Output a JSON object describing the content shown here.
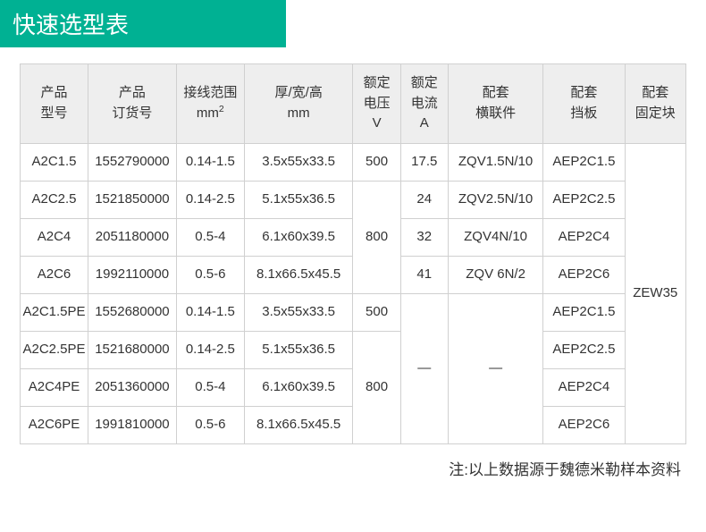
{
  "title": "快速选型表",
  "columns": {
    "c0": "产品\n型号",
    "c1": "产品\n订货号",
    "c2_a": "接线范围",
    "c2_b": "mm²",
    "c3_a": "厚/宽/高",
    "c3_b": "mm",
    "c4_a": "额定",
    "c4_b": "电压",
    "c4_c": "V",
    "c5_a": "额定",
    "c5_b": "电流",
    "c5_c": "A",
    "c6": "配套\n横联件",
    "c7": "配套\n挡板",
    "c8": "配套\n固定块"
  },
  "col_widths_pct": [
    10,
    13,
    10,
    16,
    7,
    7,
    14,
    12,
    9
  ],
  "rows": [
    {
      "model": "A2C1.5",
      "order": "1552790000",
      "wire": "0.14-1.5",
      "dim": "3.5x55x33.5",
      "volt": "500",
      "amp": "17.5",
      "cross": "ZQV1.5N/10",
      "baffle": "AEP2C1.5"
    },
    {
      "model": "A2C2.5",
      "order": "1521850000",
      "wire": "0.14-2.5",
      "dim": "5.1x55x36.5",
      "volt": null,
      "amp": "24",
      "cross": "ZQV2.5N/10",
      "baffle": "AEP2C2.5"
    },
    {
      "model": "A2C4",
      "order": "2051180000",
      "wire": "0.5-4",
      "dim": "6.1x60x39.5",
      "volt": null,
      "amp": "32",
      "cross": "ZQV4N/10",
      "baffle": "AEP2C4"
    },
    {
      "model": "A2C6",
      "order": "1992110000",
      "wire": "0.5-6",
      "dim": "8.1x66.5x45.5",
      "volt": null,
      "amp": "41",
      "cross": "ZQV 6N/2",
      "baffle": "AEP2C6"
    },
    {
      "model": "A2C1.5PE",
      "order": "1552680000",
      "wire": "0.14-1.5",
      "dim": "3.5x55x33.5",
      "volt": "500",
      "amp": null,
      "cross": null,
      "baffle": "AEP2C1.5"
    },
    {
      "model": "A2C2.5PE",
      "order": "1521680000",
      "wire": "0.14-2.5",
      "dim": "5.1x55x36.5",
      "volt": null,
      "amp": null,
      "cross": null,
      "baffle": "AEP2C2.5"
    },
    {
      "model": "A2C4PE",
      "order": "2051360000",
      "wire": "0.5-4",
      "dim": "6.1x60x39.5",
      "volt": null,
      "amp": null,
      "cross": null,
      "baffle": "AEP2C4"
    },
    {
      "model": "A2C6PE",
      "order": "1991810000",
      "wire": "0.5-6",
      "dim": "8.1x66.5x45.5",
      "volt": null,
      "amp": null,
      "cross": null,
      "baffle": "AEP2C6"
    }
  ],
  "volt_merge_b": "800",
  "volt_merge_d": "800",
  "amp_merge_dash": "—",
  "cross_merge_dash": "—",
  "fixed_block": "ZEW35",
  "footnote": "注:以上数据源于魏德米勒样本资料",
  "colors": {
    "title_bg": "#00b193",
    "title_fg": "#ffffff",
    "header_bg": "#eeeeee",
    "border": "#d0d0d0",
    "text": "#333333"
  }
}
